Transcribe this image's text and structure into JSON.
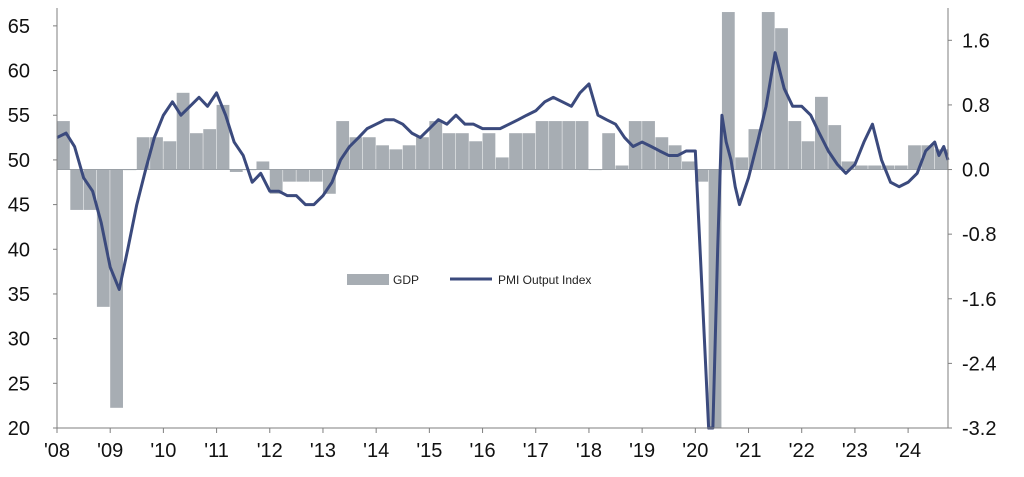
{
  "chart_data": {
    "type": "bar+line",
    "title": "",
    "legend": {
      "placement": "center",
      "entries": [
        {
          "label": "GDP",
          "kind": "bar",
          "color": "#a7adb3"
        },
        {
          "label": "PMI Output Index",
          "kind": "line",
          "color": "#3b4a7d"
        }
      ]
    },
    "x_axis": {
      "tick_labels": [
        "'08",
        "'09",
        "'10",
        "'11",
        "'12",
        "'13",
        "'14",
        "'15",
        "'16",
        "'17",
        "'18",
        "'19",
        "'20",
        "'21",
        "'22",
        "'23",
        "'24"
      ],
      "tick_years": [
        2008,
        2009,
        2010,
        2011,
        2012,
        2013,
        2014,
        2015,
        2016,
        2017,
        2018,
        2019,
        2020,
        2021,
        2022,
        2023,
        2024
      ],
      "range": [
        2008.0,
        2024.75
      ]
    },
    "y_left": {
      "label": "",
      "range": [
        20,
        67
      ],
      "ticks": [
        20,
        25,
        30,
        35,
        40,
        45,
        50,
        55,
        60,
        65
      ],
      "tick_labels": [
        "20",
        "25",
        "30",
        "35",
        "40",
        "45",
        "50",
        "55",
        "60",
        "65"
      ]
    },
    "y_right": {
      "label": "",
      "range": [
        -3.2,
        2.0
      ],
      "ticks": [
        -3.2,
        -2.4,
        -1.6,
        -0.8,
        0.0,
        0.8,
        1.6
      ],
      "tick_labels": [
        "-3.2",
        "-2.4",
        "-1.6",
        "-0.8",
        "0.0",
        "0.8",
        "1.6"
      ]
    },
    "series": [
      {
        "name": "GDP",
        "type": "bar",
        "axis": "right",
        "color": "#a7adb3",
        "x": [
          2008.0,
          2008.25,
          2008.5,
          2008.75,
          2009.0,
          2009.25,
          2009.5,
          2009.75,
          2010.0,
          2010.25,
          2010.5,
          2010.75,
          2011.0,
          2011.25,
          2011.5,
          2011.75,
          2012.0,
          2012.25,
          2012.5,
          2012.75,
          2013.0,
          2013.25,
          2013.5,
          2013.75,
          2014.0,
          2014.25,
          2014.5,
          2014.75,
          2015.0,
          2015.25,
          2015.5,
          2015.75,
          2016.0,
          2016.25,
          2016.5,
          2016.75,
          2017.0,
          2017.25,
          2017.5,
          2017.75,
          2018.0,
          2018.25,
          2018.5,
          2018.75,
          2019.0,
          2019.25,
          2019.5,
          2019.75,
          2020.0,
          2020.25,
          2020.5,
          2020.75,
          2021.0,
          2021.25,
          2021.5,
          2021.75,
          2022.0,
          2022.25,
          2022.5,
          2022.75,
          2023.0,
          2023.25,
          2023.5,
          2023.75,
          2024.0,
          2024.25,
          2024.5
        ],
        "values": [
          0.6,
          -0.5,
          -0.5,
          -1.7,
          -2.95,
          0.0,
          0.4,
          0.4,
          0.35,
          0.95,
          0.45,
          0.5,
          0.8,
          -0.03,
          0.0,
          0.1,
          -0.3,
          -0.15,
          -0.15,
          -0.15,
          -0.3,
          0.6,
          0.4,
          0.4,
          0.3,
          0.25,
          0.3,
          0.4,
          0.6,
          0.45,
          0.45,
          0.35,
          0.45,
          0.15,
          0.45,
          0.45,
          0.6,
          0.6,
          0.6,
          0.6,
          0.0,
          0.45,
          0.05,
          0.6,
          0.6,
          0.4,
          0.3,
          0.1,
          -0.15,
          -3.2,
          1.95,
          0.15,
          0.5,
          1.95,
          1.75,
          0.6,
          0.35,
          0.9,
          0.55,
          0.1,
          0.05,
          0.05,
          0.05,
          0.05,
          0.3,
          0.3,
          0.25
        ]
      },
      {
        "name": "PMI Output Index",
        "type": "line",
        "axis": "left",
        "color": "#3b4a7d",
        "x": [
          2008.0,
          2008.17,
          2008.33,
          2008.5,
          2008.67,
          2008.83,
          2009.0,
          2009.17,
          2009.33,
          2009.5,
          2009.67,
          2009.83,
          2010.0,
          2010.17,
          2010.33,
          2010.5,
          2010.67,
          2010.83,
          2011.0,
          2011.17,
          2011.33,
          2011.5,
          2011.67,
          2011.83,
          2012.0,
          2012.17,
          2012.33,
          2012.5,
          2012.67,
          2012.83,
          2013.0,
          2013.17,
          2013.33,
          2013.5,
          2013.67,
          2013.83,
          2014.0,
          2014.17,
          2014.33,
          2014.5,
          2014.67,
          2014.83,
          2015.0,
          2015.17,
          2015.33,
          2015.5,
          2015.67,
          2015.83,
          2016.0,
          2016.17,
          2016.33,
          2016.5,
          2016.67,
          2016.83,
          2017.0,
          2017.17,
          2017.33,
          2017.5,
          2017.67,
          2017.83,
          2018.0,
          2018.17,
          2018.33,
          2018.5,
          2018.67,
          2018.83,
          2019.0,
          2019.17,
          2019.33,
          2019.5,
          2019.67,
          2019.83,
          2020.0,
          2020.17,
          2020.25,
          2020.33,
          2020.42,
          2020.5,
          2020.58,
          2020.67,
          2020.75,
          2020.83,
          2021.0,
          2021.17,
          2021.33,
          2021.5,
          2021.67,
          2021.83,
          2022.0,
          2022.17,
          2022.33,
          2022.5,
          2022.67,
          2022.83,
          2023.0,
          2023.17,
          2023.33,
          2023.5,
          2023.67,
          2023.83,
          2024.0,
          2024.17,
          2024.33,
          2024.5,
          2024.58,
          2024.67,
          2024.75
        ],
        "values": [
          52.5,
          53,
          51.5,
          48,
          46.5,
          43,
          38,
          35.5,
          40,
          45,
          49,
          52.5,
          55,
          56.5,
          55,
          56,
          57,
          56,
          57.5,
          55,
          52,
          50.5,
          47.5,
          48.5,
          46.5,
          46.5,
          46,
          46,
          45,
          45,
          46,
          47.5,
          50,
          51.5,
          52.5,
          53.5,
          54,
          54.5,
          54.5,
          54,
          53,
          52.5,
          53.5,
          54.5,
          54,
          55,
          54,
          54,
          53.5,
          53.5,
          53.5,
          54,
          54.5,
          55,
          55.5,
          56.5,
          57,
          56.5,
          56,
          57.5,
          58.5,
          55,
          54.5,
          54,
          52.5,
          51.5,
          52,
          51.5,
          51,
          50.5,
          50.5,
          51,
          51,
          30,
          20,
          20,
          40,
          55,
          52,
          50,
          47,
          45,
          48,
          52,
          56,
          62,
          58,
          56,
          56,
          55,
          53,
          51,
          49.5,
          48.5,
          49.5,
          52,
          54,
          50,
          47.5,
          47,
          47.5,
          48.5,
          51,
          52,
          50.5,
          51.5,
          50
        ]
      }
    ],
    "grid": false
  }
}
